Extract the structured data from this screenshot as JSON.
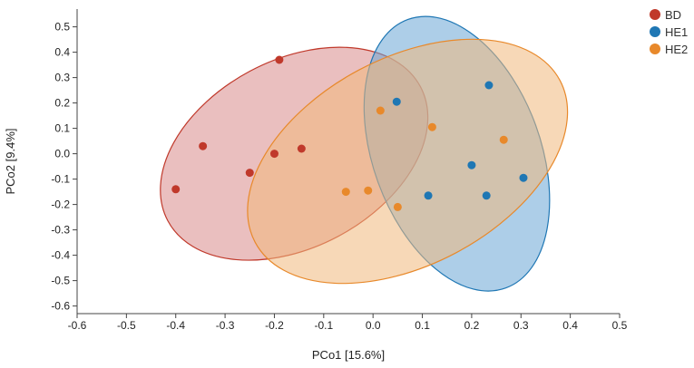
{
  "chart_data": {
    "type": "scatter",
    "xlabel": "PCo1 [15.6%]",
    "ylabel": "PCo2 [9.4%]",
    "xlim": [
      -0.6,
      0.5
    ],
    "ylim": [
      -0.63,
      0.57
    ],
    "xticks": [
      -0.6,
      -0.5,
      -0.4,
      -0.3,
      -0.2,
      -0.1,
      0.0,
      0.1,
      0.2,
      0.3,
      0.4,
      0.5
    ],
    "xtick_labels": [
      "-0.6",
      "-0.5",
      "-0.4",
      "-0.3",
      "-0.2",
      "-0.1",
      "0.0",
      "0.1",
      "0.2",
      "0.3",
      "0.4",
      "0.5"
    ],
    "yticks": [
      0.5,
      0.4,
      0.3,
      0.2,
      0.1,
      0.0,
      -0.1,
      -0.2,
      -0.3,
      -0.4,
      -0.5,
      -0.6
    ],
    "ytick_labels": [
      "0.5",
      "0.4",
      "0.3",
      "0.2",
      "0.1",
      "0.0",
      "-0.1",
      "-0.2",
      "-0.3",
      "-0.4",
      "-0.5",
      "-0.6"
    ],
    "grid": false,
    "legend_position": "top-right",
    "series": [
      {
        "name": "BD",
        "color": "#c0392b",
        "fill": "#d98a8a",
        "points": [
          [
            -0.19,
            0.37
          ],
          [
            -0.345,
            0.03
          ],
          [
            -0.2,
            0.0
          ],
          [
            -0.145,
            0.02
          ],
          [
            -0.25,
            -0.075
          ],
          [
            -0.4,
            -0.14
          ]
        ],
        "ellipse": {
          "center": [
            -0.16,
            0.0
          ],
          "semi_axes": [
            0.29,
            0.19
          ],
          "rotation_deg": 28
        }
      },
      {
        "name": "HE1",
        "color": "#1f77b4",
        "fill": "#6aa6d6",
        "points": [
          [
            0.048,
            0.205
          ],
          [
            0.235,
            0.27
          ],
          [
            0.2,
            -0.045
          ],
          [
            0.305,
            -0.095
          ],
          [
            0.112,
            -0.165
          ],
          [
            0.23,
            -0.165
          ]
        ],
        "ellipse": {
          "center": [
            0.17,
            0.0
          ],
          "semi_axes": [
            0.29,
            0.17
          ],
          "rotation_deg": -70
        }
      },
      {
        "name": "HE2",
        "color": "#e8892b",
        "fill": "#f0b87c",
        "points": [
          [
            0.015,
            0.17
          ],
          [
            0.12,
            0.105
          ],
          [
            0.265,
            0.055
          ],
          [
            -0.055,
            -0.15
          ],
          [
            -0.01,
            -0.145
          ],
          [
            0.05,
            -0.21
          ]
        ],
        "ellipse": {
          "center": [
            0.07,
            -0.03
          ],
          "semi_axes": [
            0.35,
            0.21
          ],
          "rotation_deg": 28
        }
      }
    ]
  }
}
